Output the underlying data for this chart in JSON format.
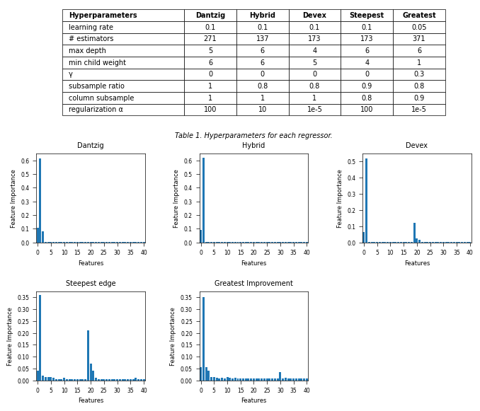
{
  "table_caption": "Table 1. Hyperparameters for each regressor.",
  "table_headers": [
    "Hyperparameters",
    "Dantzig",
    "Hybrid",
    "Devex",
    "Steepest",
    "Greatest"
  ],
  "table_rows": [
    [
      "learning rate",
      "0.1",
      "0.1",
      "0.1",
      "0.1",
      "0.05"
    ],
    [
      "# estimators",
      "271",
      "137",
      "173",
      "173",
      "371"
    ],
    [
      "max depth",
      "5",
      "6",
      "4",
      "6",
      "6"
    ],
    [
      "min child weight",
      "6",
      "6",
      "5",
      "4",
      "1"
    ],
    [
      "γ",
      "0",
      "0",
      "0",
      "0",
      "0.3"
    ],
    [
      "subsample ratio",
      "1",
      "0.8",
      "0.8",
      "0.9",
      "0.8"
    ],
    [
      "column subsample",
      "1",
      "1",
      "1",
      "0.8",
      "0.9"
    ],
    [
      "regularization α",
      "100",
      "10",
      "1e-5",
      "100",
      "1e-5"
    ]
  ],
  "bar_color": "#1f77b4",
  "n_features": 41,
  "subplots": [
    {
      "title": "Dantzig",
      "importances": [
        0.105,
        0.615,
        0.08,
        0.005,
        0.005,
        0.005,
        0.003,
        0.003,
        0.003,
        0.003,
        0.003,
        0.003,
        0.003,
        0.003,
        0.003,
        0.003,
        0.003,
        0.003,
        0.003,
        0.003,
        0.003,
        0.003,
        0.003,
        0.003,
        0.003,
        0.003,
        0.003,
        0.003,
        0.003,
        0.003,
        0.003,
        0.003,
        0.003,
        0.003,
        0.003,
        0.003,
        0.003,
        0.003,
        0.003,
        0.003,
        0.003
      ],
      "ylim": [
        0,
        0.65
      ],
      "yticks": [
        0.0,
        0.1,
        0.2,
        0.3,
        0.4,
        0.5,
        0.6
      ]
    },
    {
      "title": "Hybrid",
      "importances": [
        0.09,
        0.62,
        0.005,
        0.005,
        0.005,
        0.005,
        0.003,
        0.003,
        0.003,
        0.003,
        0.003,
        0.003,
        0.003,
        0.003,
        0.003,
        0.003,
        0.003,
        0.003,
        0.003,
        0.003,
        0.003,
        0.005,
        0.003,
        0.003,
        0.003,
        0.003,
        0.003,
        0.003,
        0.003,
        0.003,
        0.003,
        0.003,
        0.003,
        0.003,
        0.003,
        0.003,
        0.003,
        0.003,
        0.003,
        0.003,
        0.003
      ],
      "ylim": [
        0,
        0.65
      ],
      "yticks": [
        0.0,
        0.1,
        0.2,
        0.3,
        0.4,
        0.5,
        0.6
      ]
    },
    {
      "title": "Devex",
      "importances": [
        0.065,
        0.52,
        0.003,
        0.003,
        0.003,
        0.003,
        0.003,
        0.003,
        0.003,
        0.003,
        0.003,
        0.003,
        0.003,
        0.003,
        0.003,
        0.003,
        0.003,
        0.003,
        0.003,
        0.12,
        0.025,
        0.015,
        0.003,
        0.003,
        0.003,
        0.003,
        0.003,
        0.003,
        0.003,
        0.003,
        0.003,
        0.003,
        0.003,
        0.003,
        0.003,
        0.003,
        0.003,
        0.003,
        0.003,
        0.003,
        0.003
      ],
      "ylim": [
        0,
        0.55
      ],
      "yticks": [
        0.0,
        0.1,
        0.2,
        0.3,
        0.4,
        0.5
      ]
    },
    {
      "title": "Steepest edge",
      "importances": [
        0.04,
        0.36,
        0.02,
        0.015,
        0.015,
        0.015,
        0.01,
        0.005,
        0.005,
        0.005,
        0.01,
        0.005,
        0.005,
        0.005,
        0.005,
        0.005,
        0.005,
        0.005,
        0.005,
        0.21,
        0.07,
        0.04,
        0.01,
        0.005,
        0.005,
        0.005,
        0.005,
        0.005,
        0.005,
        0.005,
        0.005,
        0.005,
        0.005,
        0.005,
        0.005,
        0.005,
        0.005,
        0.01,
        0.005,
        0.005,
        0.005
      ],
      "ylim": [
        0,
        0.375
      ],
      "yticks": [
        0.0,
        0.05,
        0.1,
        0.15,
        0.2,
        0.25,
        0.3,
        0.35
      ]
    },
    {
      "title": "Greatest Improvement",
      "importances": [
        0.055,
        0.35,
        0.055,
        0.04,
        0.015,
        0.015,
        0.01,
        0.008,
        0.01,
        0.008,
        0.015,
        0.01,
        0.008,
        0.01,
        0.008,
        0.008,
        0.008,
        0.008,
        0.008,
        0.008,
        0.008,
        0.008,
        0.008,
        0.008,
        0.008,
        0.008,
        0.008,
        0.008,
        0.008,
        0.008,
        0.035,
        0.008,
        0.01,
        0.008,
        0.008,
        0.008,
        0.008,
        0.008,
        0.008,
        0.008,
        0.008
      ],
      "ylim": [
        0,
        0.375
      ],
      "yticks": [
        0.0,
        0.05,
        0.1,
        0.15,
        0.2,
        0.25,
        0.3,
        0.35
      ]
    }
  ]
}
